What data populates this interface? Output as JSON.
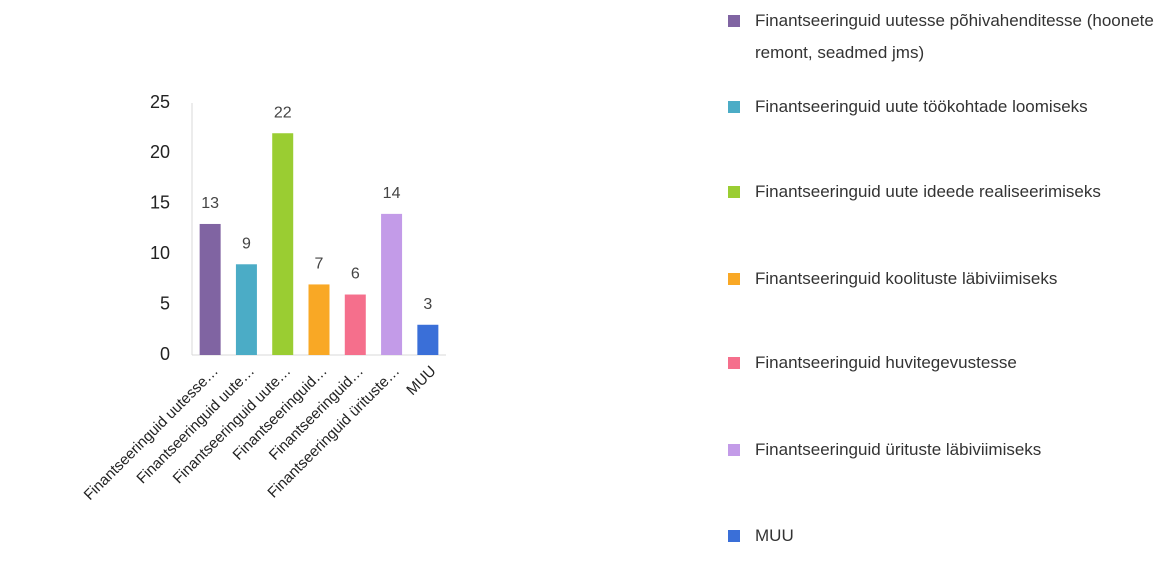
{
  "chart_data": {
    "type": "bar",
    "categories": [
      "Finantseeringuid uutesse…",
      "Finantseeringuid uute…",
      "Finantseeringuid  uute…",
      "Finantseeringuid…",
      "Finantseeringuid…",
      "Finantseeringuid ürituste…",
      "MUU"
    ],
    "legend": [
      "Finantseeringuid uutesse põhivahenditesse (hoonete remont, seadmed jms)",
      "Finantseeringuid uute töökohtade loomiseks",
      "Finantseeringuid  uute ideede realiseerimiseks",
      "Finantseeringuid koolituste läbiviimiseks",
      "Finantseeringuid huvitegevustesse",
      "Finantseeringuid ürituste läbiviimiseks",
      "MUU"
    ],
    "values": [
      13,
      9,
      22,
      7,
      6,
      14,
      3
    ],
    "colors": [
      "#8064a2",
      "#4bacc6",
      "#9acd32",
      "#f9a825",
      "#f56f8c",
      "#c39be8",
      "#3a6fd8"
    ],
    "ylim": [
      0,
      25
    ],
    "yticks": [
      0,
      5,
      10,
      15,
      20,
      25
    ],
    "grid": false
  }
}
